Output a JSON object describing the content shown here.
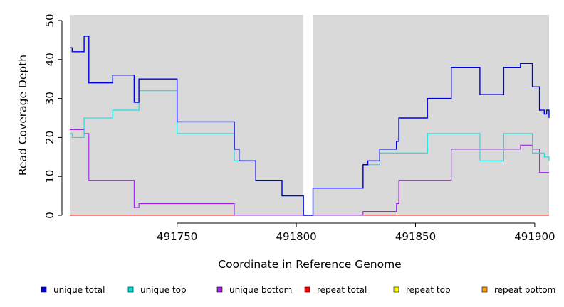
{
  "chart_data": {
    "type": "line",
    "step": true,
    "xlabel": "Coordinate in Reference Genome",
    "ylabel": "Read Coverage Depth",
    "xlim": [
      491705,
      491906
    ],
    "ylim": [
      0,
      51
    ],
    "x_ticks": [
      491750,
      491800,
      491850,
      491900
    ],
    "y_ticks": [
      0,
      10,
      20,
      30,
      40,
      50
    ],
    "grid": false,
    "background": "#d9d9d9",
    "gap": [
      491803,
      491807
    ],
    "legend_position": "bottom",
    "series": [
      {
        "name": "unique total",
        "color": "#0000e0",
        "points": [
          [
            491705,
            43
          ],
          [
            491706,
            42
          ],
          [
            491711,
            46
          ],
          [
            491713,
            34
          ],
          [
            491723,
            36
          ],
          [
            491732,
            29
          ],
          [
            491734,
            35
          ],
          [
            491750,
            24
          ],
          [
            491774,
            17
          ],
          [
            491776,
            14
          ],
          [
            491783,
            9
          ],
          [
            491794,
            5
          ],
          [
            491803,
            0
          ],
          [
            491807,
            7
          ],
          [
            491828,
            13
          ],
          [
            491830,
            14
          ],
          [
            491835,
            17
          ],
          [
            491842,
            19
          ],
          [
            491843,
            25
          ],
          [
            491855,
            30
          ],
          [
            491865,
            38
          ],
          [
            491877,
            31
          ],
          [
            491887,
            38
          ],
          [
            491894,
            39
          ],
          [
            491899,
            33
          ],
          [
            491902,
            27
          ],
          [
            491904,
            26
          ],
          [
            491905,
            27
          ],
          [
            491906,
            25
          ]
        ]
      },
      {
        "name": "unique top",
        "color": "#00e5e5",
        "points": [
          [
            491705,
            21
          ],
          [
            491706,
            20
          ],
          [
            491711,
            25
          ],
          [
            491723,
            27
          ],
          [
            491734,
            32
          ],
          [
            491750,
            21
          ],
          [
            491774,
            14
          ],
          [
            491776,
            14
          ],
          [
            491783,
            9
          ],
          [
            491794,
            5
          ],
          [
            491803,
            0
          ],
          [
            491807,
            7
          ],
          [
            491828,
            13
          ],
          [
            491835,
            16
          ],
          [
            491855,
            21
          ],
          [
            491877,
            14
          ],
          [
            491887,
            21
          ],
          [
            491899,
            16
          ],
          [
            491904,
            15
          ],
          [
            491906,
            14
          ]
        ]
      },
      {
        "name": "unique bottom",
        "color": "#a020f0",
        "points": [
          [
            491705,
            22
          ],
          [
            491711,
            21
          ],
          [
            491713,
            9
          ],
          [
            491732,
            2
          ],
          [
            491734,
            3
          ],
          [
            491774,
            0
          ],
          [
            491828,
            1
          ],
          [
            491842,
            3
          ],
          [
            491843,
            9
          ],
          [
            491865,
            17
          ],
          [
            491894,
            18
          ],
          [
            491899,
            17
          ],
          [
            491902,
            11
          ],
          [
            491906,
            11
          ]
        ]
      },
      {
        "name": "repeat total",
        "color": "#ff0000",
        "points": [
          [
            491705,
            0
          ],
          [
            491906,
            0
          ]
        ]
      },
      {
        "name": "repeat top",
        "color": "#ffff00",
        "points": [
          [
            491705,
            0
          ],
          [
            491906,
            0
          ]
        ]
      },
      {
        "name": "repeat bottom",
        "color": "#ffa500",
        "points": [
          [
            491705,
            0
          ],
          [
            491906,
            0
          ]
        ]
      }
    ]
  }
}
